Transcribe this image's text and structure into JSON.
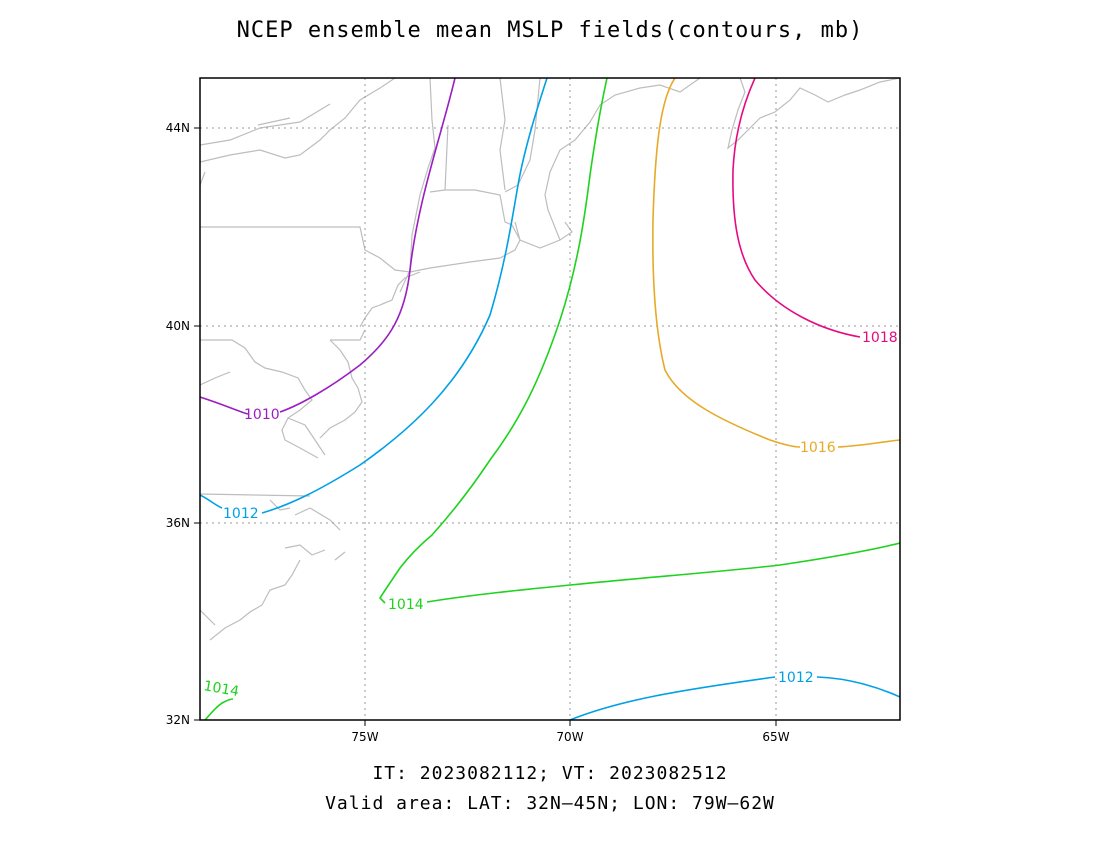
{
  "title": "NCEP ensemble mean MSLP fields(contours, mb)",
  "footer": {
    "times": "IT: 2023082112; VT: 2023082512",
    "area": "Valid area: LAT: 32N–45N; LON: 79W–62W"
  },
  "map": {
    "lat_range": [
      32,
      45
    ],
    "lon_range": [
      -79,
      -62
    ],
    "lat_ticks": [
      "32N",
      "36N",
      "40N",
      "44N"
    ],
    "lon_ticks": [
      "75W",
      "70W",
      "65W"
    ],
    "grid": true
  },
  "contours": [
    {
      "value": 1010,
      "label": "1010",
      "color": "#9b1fc0"
    },
    {
      "value": 1012,
      "label": "1012",
      "color": "#00a0e6"
    },
    {
      "value": 1014,
      "label": "1014",
      "color": "#1ed21e"
    },
    {
      "value": 1016,
      "label": "1016",
      "color": "#e6aa28"
    },
    {
      "value": 1018,
      "label": "1018",
      "color": "#e60a82"
    }
  ],
  "contour_labels": [
    {
      "text": "1010",
      "color": "#9b1fc0"
    },
    {
      "text": "1012",
      "color": "#00a0e6"
    },
    {
      "text": "1012",
      "color": "#00a0e6"
    },
    {
      "text": "1014",
      "color": "#1ed21e"
    },
    {
      "text": "1014",
      "color": "#1ed21e"
    },
    {
      "text": "1016",
      "color": "#e6aa28"
    },
    {
      "text": "1018",
      "color": "#e60a82"
    }
  ]
}
